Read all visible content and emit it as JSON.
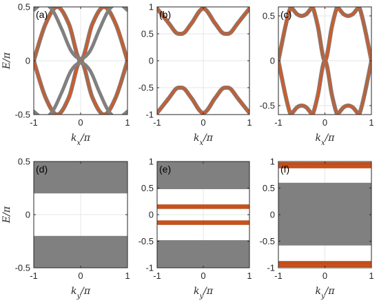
{
  "chart_data": [
    {
      "panel_label": "(a)",
      "type": "line",
      "xlabel": "k_x/π",
      "ylabel": "E/π",
      "xlim": [
        -1,
        1
      ],
      "ylim": [
        -0.5,
        0.5
      ],
      "xticks": [
        "-1",
        "0",
        "1"
      ],
      "yticks": [
        "-0.5",
        "0",
        "0.5"
      ],
      "grid": true,
      "series": [
        {
          "style": "orange-circles-gray-line",
          "x": [
            -1,
            -0.75,
            -0.5,
            -0.25,
            0,
            0.25,
            0.5,
            0.75,
            1
          ],
          "y": [
            0,
            0.34,
            0.5,
            0.34,
            0,
            0.34,
            0.5,
            0.34,
            0
          ]
        },
        {
          "style": "orange-circles-gray-line",
          "x": [
            -1,
            -0.75,
            -0.5,
            -0.25,
            0,
            0.25,
            0.5,
            0.75,
            1
          ],
          "y": [
            0,
            -0.34,
            -0.5,
            -0.34,
            0,
            -0.34,
            -0.5,
            -0.34,
            0
          ]
        },
        {
          "style": "gray-line",
          "x": [
            -1,
            -0.8,
            -0.6,
            -0.4,
            -0.2,
            0,
            0.2,
            0.4,
            0.6,
            0.8,
            1
          ],
          "y": [
            0.47,
            0.53,
            0.47,
            0.29,
            0.09,
            0.02,
            0.09,
            0.29,
            0.47,
            0.53,
            0.47
          ]
        },
        {
          "style": "gray-line",
          "x": [
            -1,
            -0.8,
            -0.6,
            -0.4,
            -0.2,
            0,
            0.2,
            0.4,
            0.6,
            0.8,
            1
          ],
          "y": [
            -0.47,
            -0.53,
            -0.47,
            -0.29,
            -0.09,
            -0.02,
            -0.09,
            -0.29,
            -0.47,
            -0.53,
            -0.47
          ]
        }
      ]
    },
    {
      "panel_label": "(b)",
      "type": "line",
      "xlabel": "k_x/π",
      "ylabel": "",
      "xlim": [
        -1,
        1
      ],
      "ylim": [
        -1,
        1
      ],
      "xticks": [
        "-1",
        "0",
        "1"
      ],
      "yticks": [
        "-1",
        "-0.5",
        "0",
        "0.5",
        "1"
      ],
      "grid": true,
      "series": [
        {
          "style": "orange-circles-gray-line",
          "x": [
            -1,
            -0.75,
            -0.6,
            -0.5,
            -0.4,
            -0.25,
            0,
            0.25,
            0.4,
            0.5,
            0.6,
            0.75,
            1
          ],
          "y": [
            0.97,
            0.7,
            0.53,
            0.5,
            0.53,
            0.7,
            0.97,
            0.7,
            0.53,
            0.5,
            0.53,
            0.7,
            0.97
          ]
        },
        {
          "style": "orange-circles-gray-line",
          "x": [
            -1,
            -0.75,
            -0.6,
            -0.5,
            -0.4,
            -0.25,
            0,
            0.25,
            0.4,
            0.5,
            0.6,
            0.75,
            1
          ],
          "y": [
            -0.97,
            -0.7,
            -0.53,
            -0.5,
            -0.53,
            -0.7,
            -0.97,
            -0.7,
            -0.53,
            -0.5,
            -0.53,
            -0.7,
            -0.97
          ]
        }
      ]
    },
    {
      "panel_label": "(c)",
      "type": "line",
      "xlabel": "k_x/π",
      "ylabel": "",
      "xlim": [
        -1,
        1
      ],
      "ylim": [
        -0.6,
        0.6
      ],
      "xticks": [
        "-1",
        "0",
        "1"
      ],
      "yticks": [
        "-0.5",
        "0",
        "0.5"
      ],
      "grid": true,
      "series": [
        {
          "style": "orange-circles-gray-line",
          "x": [
            -1,
            -0.85,
            -0.75,
            -0.7,
            -0.6,
            -0.5,
            -0.4,
            -0.3,
            -0.25,
            -0.15,
            0,
            0.15,
            0.25,
            0.3,
            0.4,
            0.5,
            0.6,
            0.7,
            0.75,
            0.85,
            1
          ],
          "y": [
            0,
            0.38,
            0.58,
            0.58,
            0.52,
            0.5,
            0.52,
            0.58,
            0.58,
            0.38,
            0,
            0.38,
            0.58,
            0.58,
            0.52,
            0.5,
            0.52,
            0.58,
            0.58,
            0.38,
            0
          ]
        },
        {
          "style": "orange-circles-gray-line",
          "x": [
            -1,
            -0.85,
            -0.75,
            -0.7,
            -0.6,
            -0.5,
            -0.4,
            -0.3,
            -0.25,
            -0.15,
            0,
            0.15,
            0.25,
            0.3,
            0.4,
            0.5,
            0.6,
            0.7,
            0.75,
            0.85,
            1
          ],
          "y": [
            0,
            -0.38,
            -0.58,
            -0.58,
            -0.52,
            -0.5,
            -0.52,
            -0.58,
            -0.58,
            -0.38,
            0,
            -0.38,
            -0.58,
            -0.58,
            -0.52,
            -0.5,
            -0.52,
            -0.58,
            -0.58,
            -0.38,
            0
          ]
        }
      ]
    },
    {
      "panel_label": "(d)",
      "type": "area",
      "xlabel": "k_y/π",
      "ylabel": "E/π",
      "xlim": [
        -1,
        1
      ],
      "ylim": [
        -0.5,
        0.5
      ],
      "xticks": [
        "-1",
        "0",
        "1"
      ],
      "yticks": [
        "-0.5",
        "0",
        "0.5"
      ],
      "grid": true,
      "bands": [
        {
          "from": 0.2,
          "to": 0.5
        },
        {
          "from": -0.5,
          "to": -0.2
        }
      ],
      "lines": []
    },
    {
      "panel_label": "(e)",
      "type": "area",
      "xlabel": "k_y/π",
      "ylabel": "",
      "xlim": [
        -1,
        1
      ],
      "ylim": [
        -1,
        1
      ],
      "xticks": [
        "-1",
        "0",
        "1"
      ],
      "yticks": [
        "-1",
        "-0.5",
        "0",
        "0.5",
        "1"
      ],
      "grid": true,
      "bands": [
        {
          "from": 0.48,
          "to": 1.0
        },
        {
          "from": -1.0,
          "to": -0.48
        }
      ],
      "lines": [
        0.15,
        -0.15
      ]
    },
    {
      "panel_label": "(f)",
      "type": "area",
      "xlabel": "k_y/π",
      "ylabel": "",
      "xlim": [
        -1,
        1
      ],
      "ylim": [
        -1,
        1
      ],
      "xticks": [
        "-1",
        "0",
        "1"
      ],
      "yticks": [
        "-1",
        "-0.5",
        "0",
        "0.5",
        "1"
      ],
      "grid": true,
      "bands": [
        {
          "from": -0.58,
          "to": 0.6
        },
        {
          "from": -0.985,
          "to": -0.88
        },
        {
          "from": 0.88,
          "to": 0.985
        }
      ],
      "lines": [
        0.945,
        0.915,
        -0.915,
        -0.945
      ]
    }
  ],
  "colors": {
    "band_gray": "#808080",
    "marker_orange": "#d95319",
    "axis": "#262626",
    "grid": "#e6e6e6"
  }
}
